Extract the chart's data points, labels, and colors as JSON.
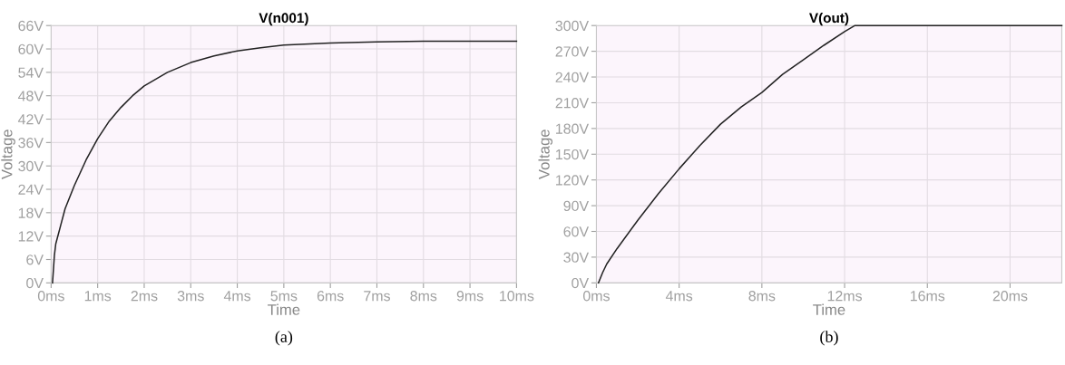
{
  "chart_data": [
    {
      "type": "line",
      "title": "V(n001)",
      "xlabel": "Time",
      "ylabel": "Voltage",
      "annotations": [
        "(a)"
      ],
      "grid": true,
      "legend": false,
      "marker": "none",
      "line_style": "solid",
      "xlim": [
        0,
        10
      ],
      "ylim": [
        0,
        66
      ],
      "xticks": [
        {
          "value": 0,
          "label": "0ms"
        },
        {
          "value": 1,
          "label": "1ms"
        },
        {
          "value": 2,
          "label": "2ms"
        },
        {
          "value": 3,
          "label": "3ms"
        },
        {
          "value": 4,
          "label": "4ms"
        },
        {
          "value": 5,
          "label": "5ms"
        },
        {
          "value": 6,
          "label": "6ms"
        },
        {
          "value": 7,
          "label": "7ms"
        },
        {
          "value": 8,
          "label": "8ms"
        },
        {
          "value": 9,
          "label": "9ms"
        },
        {
          "value": 10,
          "label": "10ms"
        }
      ],
      "yticks": [
        {
          "value": 0,
          "label": "0V"
        },
        {
          "value": 6,
          "label": "6V"
        },
        {
          "value": 12,
          "label": "12V"
        },
        {
          "value": 18,
          "label": "18V"
        },
        {
          "value": 24,
          "label": "24V"
        },
        {
          "value": 30,
          "label": "30V"
        },
        {
          "value": 36,
          "label": "36V"
        },
        {
          "value": 42,
          "label": "42V"
        },
        {
          "value": 48,
          "label": "48V"
        },
        {
          "value": 54,
          "label": "54V"
        },
        {
          "value": 60,
          "label": "60V"
        },
        {
          "value": 66,
          "label": "66V"
        }
      ],
      "series": [
        {
          "color": "#222222",
          "x": [
            0.03,
            0.07,
            0.1,
            0.2,
            0.3,
            0.5,
            0.75,
            1,
            1.25,
            1.5,
            1.75,
            2,
            2.5,
            3,
            3.5,
            4,
            4.5,
            5,
            6,
            7,
            8,
            9,
            10
          ],
          "values": [
            0,
            7,
            10,
            14.5,
            19,
            25,
            31.5,
            37,
            41.5,
            45,
            48,
            50.5,
            54,
            56.5,
            58.2,
            59.5,
            60.3,
            61,
            61.5,
            61.8,
            62,
            62,
            62
          ]
        }
      ]
    },
    {
      "type": "line",
      "title": "V(out)",
      "xlabel": "Time",
      "ylabel": "Voltage",
      "annotations": [
        "(b)"
      ],
      "grid": true,
      "legend": false,
      "marker": "none",
      "line_style": "solid",
      "xlim": [
        0,
        22.5
      ],
      "ylim": [
        0,
        300
      ],
      "xticks": [
        {
          "value": 0,
          "label": "0ms"
        },
        {
          "value": 4,
          "label": "4ms"
        },
        {
          "value": 8,
          "label": "8ms"
        },
        {
          "value": 12,
          "label": "12ms"
        },
        {
          "value": 16,
          "label": "16ms"
        },
        {
          "value": 20,
          "label": "20ms"
        }
      ],
      "yticks": [
        {
          "value": 0,
          "label": "0V"
        },
        {
          "value": 30,
          "label": "30V"
        },
        {
          "value": 60,
          "label": "60V"
        },
        {
          "value": 90,
          "label": "90V"
        },
        {
          "value": 120,
          "label": "120V"
        },
        {
          "value": 150,
          "label": "150V"
        },
        {
          "value": 180,
          "label": "180V"
        },
        {
          "value": 210,
          "label": "210V"
        },
        {
          "value": 240,
          "label": "240V"
        },
        {
          "value": 270,
          "label": "270V"
        },
        {
          "value": 300,
          "label": "300V"
        }
      ],
      "series": [
        {
          "color": "#222222",
          "x": [
            0.1,
            0.3,
            0.5,
            1,
            2,
            3,
            4,
            5,
            6,
            7,
            8,
            9,
            10,
            11,
            12,
            12.5,
            22.5
          ],
          "values": [
            0,
            12,
            22,
            40,
            73,
            104,
            133,
            160,
            185,
            205,
            222,
            243,
            260,
            277,
            293,
            300,
            300
          ]
        }
      ]
    }
  ]
}
